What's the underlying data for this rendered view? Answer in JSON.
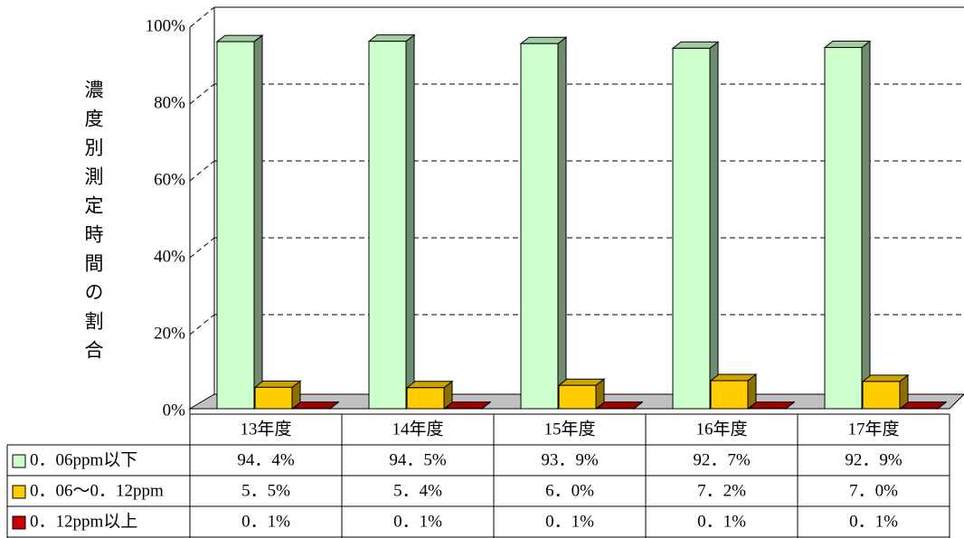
{
  "chart_data": {
    "type": "bar3d",
    "y_axis_label": "濃度別測定時間の割合",
    "categories": [
      "13年度",
      "14年度",
      "15年度",
      "16年度",
      "17年度"
    ],
    "series": [
      {
        "name": "0．06ppm以下",
        "color": "#ccffcc",
        "values": [
          94.4,
          94.5,
          93.9,
          92.7,
          92.9
        ],
        "value_labels": [
          "94．4%",
          "94．5%",
          "93．9%",
          "92．7%",
          "92．9%"
        ]
      },
      {
        "name": "0．06～0．12ppm",
        "color": "#ffcc00",
        "values": [
          5.5,
          5.4,
          6.0,
          7.2,
          7.0
        ],
        "value_labels": [
          "5．5%",
          "5．4%",
          "6．0%",
          "7．2%",
          "7．0%"
        ]
      },
      {
        "name": "0．12ppm以上",
        "color": "#cc0000",
        "values": [
          0.1,
          0.1,
          0.1,
          0.1,
          0.1
        ],
        "value_labels": [
          "0．1%",
          "0．1%",
          "0．1%",
          "0．1%",
          "0．1%"
        ]
      }
    ],
    "ylim": [
      0,
      100
    ],
    "yticks": [
      {
        "value": 0,
        "label": "0%"
      },
      {
        "value": 20,
        "label": "20%"
      },
      {
        "value": 40,
        "label": "40%"
      },
      {
        "value": 60,
        "label": "60%"
      },
      {
        "value": 80,
        "label": "80%"
      },
      {
        "value": 100,
        "label": "100%"
      }
    ],
    "grid": true
  }
}
